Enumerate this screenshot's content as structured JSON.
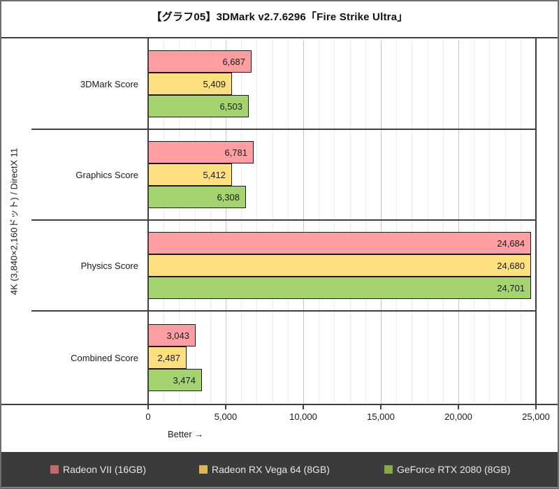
{
  "title": "【グラフ05】3DMark v2.7.6296「Fire Strike Ultra」",
  "ylabel": "4K (3,840×2,160ドット) / DirectX 11",
  "better_label": "Better →",
  "colors": {
    "legend_bg": "#3b3b3b",
    "legend_text": "#e8e8e8",
    "legend_strip": "#919191",
    "axis_line": "#3f3f3f",
    "grid_minor": "#ececec",
    "grid_major": "#c6c6c6"
  },
  "chart_data": {
    "type": "bar",
    "orientation": "horizontal",
    "title": "【グラフ05】3DMark v2.7.6296「Fire Strike Ultra」",
    "ylabel": "4K (3,840×2,160ドット) / DirectX 11",
    "categories": [
      "3DMark Score",
      "Graphics Score",
      "Physics Score",
      "Combined Score"
    ],
    "series": [
      {
        "name": "Radeon VII (16GB)",
        "color": "#ff9fa3",
        "legend_color": "#c4686e",
        "values": [
          6687,
          6781,
          24684,
          3043
        ],
        "value_labels": [
          "6,687",
          "6,781",
          "24,684",
          "3,043"
        ]
      },
      {
        "name": "Radeon RX Vega 64 (8GB)",
        "color": "#ffe07f",
        "legend_color": "#d6b854",
        "values": [
          5409,
          5412,
          24680,
          2487
        ],
        "value_labels": [
          "5,409",
          "5,412",
          "24,680",
          "2,487"
        ]
      },
      {
        "name": "GeForce RTX 2080 (8GB)",
        "color": "#a5d36f",
        "legend_color": "#83ac45",
        "values": [
          6503,
          6308,
          24701,
          3474
        ],
        "value_labels": [
          "6,503",
          "6,308",
          "24,701",
          "3,474"
        ]
      }
    ],
    "xlim": [
      0,
      25000
    ],
    "xticks": [
      {
        "value": 0,
        "label": "0"
      },
      {
        "value": 5000,
        "label": "5,000"
      },
      {
        "value": 10000,
        "label": "10,000"
      },
      {
        "value": 15000,
        "label": "15,000"
      },
      {
        "value": 20000,
        "label": "20,000"
      },
      {
        "value": 25000,
        "label": "25,000"
      }
    ],
    "minor_step": 1000,
    "grid": "vertical",
    "legend_position": "bottom",
    "better_label": "Better →"
  }
}
